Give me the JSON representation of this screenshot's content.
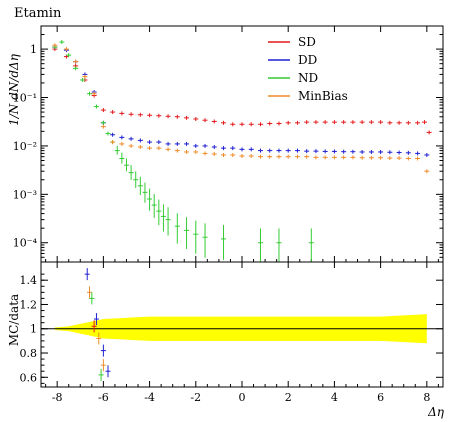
{
  "chart_data": {
    "type": "scatter",
    "title": "Etamin",
    "xlabel": "Δη",
    "ylabel": "1/N dN/dΔη",
    "ratio_ylabel": "MC/data",
    "xlim": [
      -8.7,
      8.7
    ],
    "ylim": [
      4e-05,
      3.0
    ],
    "yscale": "log",
    "ratio_ylim": [
      0.52,
      1.55
    ],
    "x_ticks": [
      "-8",
      "-6",
      "-4",
      "-2",
      "0",
      "2",
      "4",
      "6",
      "8"
    ],
    "y_ticks": [
      "10⁻⁴",
      "10⁻³",
      "10⁻²",
      "10⁻¹",
      "1"
    ],
    "ratio_ticks": [
      "0.6",
      "0.8",
      "1",
      "1.2",
      "1.4"
    ],
    "legend_position": "top-right",
    "colors": {
      "SD": "#e41a1c",
      "DD": "#1f1fd0",
      "ND": "#33cc33",
      "MinBias": "#f08c2a",
      "band": "#ffff00"
    },
    "series": [
      {
        "name": "SD",
        "x": [
          -8.1,
          -7.6,
          -7.2,
          -6.8,
          -6.4,
          -6.0,
          -5.6,
          -5.2,
          -4.8,
          -4.4,
          -4.0,
          -3.6,
          -3.2,
          -2.8,
          -2.4,
          -2.0,
          -1.6,
          -1.2,
          -0.8,
          -0.4,
          0.0,
          0.4,
          0.8,
          1.2,
          1.6,
          2.0,
          2.4,
          2.8,
          3.2,
          3.6,
          4.0,
          4.4,
          4.8,
          5.2,
          5.6,
          6.0,
          6.4,
          6.8,
          7.2,
          7.6,
          7.9,
          8.1
        ],
        "y": [
          1.0,
          0.7,
          0.45,
          0.23,
          0.11,
          0.055,
          0.05,
          0.047,
          0.045,
          0.044,
          0.043,
          0.042,
          0.041,
          0.04,
          0.038,
          0.036,
          0.034,
          0.032,
          0.03,
          0.028,
          0.028,
          0.028,
          0.028,
          0.029,
          0.029,
          0.03,
          0.03,
          0.031,
          0.031,
          0.031,
          0.031,
          0.031,
          0.031,
          0.031,
          0.031,
          0.031,
          0.03,
          0.03,
          0.03,
          0.03,
          0.031,
          0.019
        ]
      },
      {
        "name": "DD",
        "x": [
          -8.1,
          -7.6,
          -7.2,
          -6.8,
          -6.4,
          -6.0,
          -5.6,
          -5.2,
          -4.8,
          -4.4,
          -4.0,
          -3.6,
          -3.2,
          -2.8,
          -2.4,
          -2.0,
          -1.6,
          -1.2,
          -0.8,
          -0.4,
          0.0,
          0.4,
          0.8,
          1.2,
          1.6,
          2.0,
          2.4,
          2.8,
          3.2,
          3.6,
          4.0,
          4.4,
          4.8,
          5.2,
          5.6,
          6.0,
          6.4,
          6.8,
          7.2,
          7.6,
          8.0
        ],
        "y": [
          1.1,
          0.95,
          0.55,
          0.3,
          0.13,
          0.03,
          0.017,
          0.015,
          0.014,
          0.013,
          0.012,
          0.012,
          0.011,
          0.011,
          0.011,
          0.01,
          0.01,
          0.0095,
          0.009,
          0.009,
          0.0085,
          0.0085,
          0.008,
          0.008,
          0.008,
          0.008,
          0.008,
          0.0078,
          0.0078,
          0.0077,
          0.0077,
          0.0076,
          0.0076,
          0.0075,
          0.0075,
          0.0075,
          0.0074,
          0.0073,
          0.0072,
          0.007,
          0.0065
        ]
      },
      {
        "name": "ND",
        "x": [
          -8.1,
          -7.8,
          -7.5,
          -7.2,
          -6.9,
          -6.6,
          -6.3,
          -6.0,
          -5.8,
          -5.6,
          -5.4,
          -5.2,
          -5.0,
          -4.8,
          -4.6,
          -4.4,
          -4.2,
          -4.0,
          -3.8,
          -3.6,
          -3.4,
          -3.2,
          -2.8,
          -2.4,
          -2.0,
          -1.6,
          -0.8,
          0.8,
          1.6,
          3.0
        ],
        "y": [
          1.1,
          1.4,
          0.75,
          0.4,
          0.23,
          0.12,
          0.065,
          0.03,
          0.018,
          0.012,
          0.008,
          0.0055,
          0.004,
          0.0028,
          0.002,
          0.0015,
          0.0011,
          0.0008,
          0.0006,
          0.00045,
          0.00035,
          0.0003,
          0.00022,
          0.00018,
          0.00015,
          0.00013,
          0.00012,
          0.0001,
          0.0001,
          0.0001
        ]
      },
      {
        "name": "MinBias",
        "x": [
          -8.1,
          -7.6,
          -7.2,
          -6.8,
          -6.4,
          -6.0,
          -5.6,
          -5.2,
          -4.8,
          -4.4,
          -4.0,
          -3.6,
          -3.2,
          -2.8,
          -2.4,
          -2.0,
          -1.6,
          -1.2,
          -0.8,
          -0.4,
          0.0,
          0.4,
          0.8,
          1.2,
          1.6,
          2.0,
          2.4,
          2.8,
          3.2,
          3.6,
          4.0,
          4.4,
          4.8,
          5.2,
          5.6,
          6.0,
          6.4,
          6.8,
          7.2,
          7.6,
          8.0
        ],
        "y": [
          1.2,
          1.0,
          0.55,
          0.27,
          0.12,
          0.025,
          0.012,
          0.011,
          0.01,
          0.0095,
          0.009,
          0.009,
          0.0085,
          0.008,
          0.0075,
          0.0075,
          0.007,
          0.0068,
          0.0065,
          0.0065,
          0.0062,
          0.0062,
          0.006,
          0.006,
          0.006,
          0.006,
          0.006,
          0.006,
          0.0058,
          0.0058,
          0.0058,
          0.0058,
          0.0058,
          0.0057,
          0.0057,
          0.0057,
          0.0056,
          0.0056,
          0.0055,
          0.0055,
          0.003
        ]
      }
    ],
    "ratio": {
      "band_x": [
        -8.1,
        -7.5,
        -7.0,
        -6.5,
        -6.0,
        -5.0,
        -4.0,
        -2.0,
        0.0,
        2.0,
        4.0,
        6.0,
        8.0
      ],
      "band_half_width": [
        0.01,
        0.02,
        0.04,
        0.06,
        0.08,
        0.09,
        0.1,
        0.1,
        0.1,
        0.1,
        0.1,
        0.1,
        0.12
      ],
      "points": [
        {
          "series": "DD",
          "x": -6.7,
          "y": 1.45
        },
        {
          "series": "DD",
          "x": -6.3,
          "y": 1.08
        },
        {
          "series": "DD",
          "x": -6.0,
          "y": 0.82
        },
        {
          "series": "DD",
          "x": -5.8,
          "y": 0.65
        },
        {
          "series": "MinBias",
          "x": -6.6,
          "y": 1.3
        },
        {
          "series": "MinBias",
          "x": -6.2,
          "y": 0.92
        },
        {
          "series": "MinBias",
          "x": -6.0,
          "y": 0.7
        },
        {
          "series": "ND",
          "x": -6.5,
          "y": 1.25
        },
        {
          "series": "ND",
          "x": -6.1,
          "y": 0.62
        },
        {
          "series": "SD",
          "x": -6.4,
          "y": 1.02
        }
      ]
    }
  }
}
